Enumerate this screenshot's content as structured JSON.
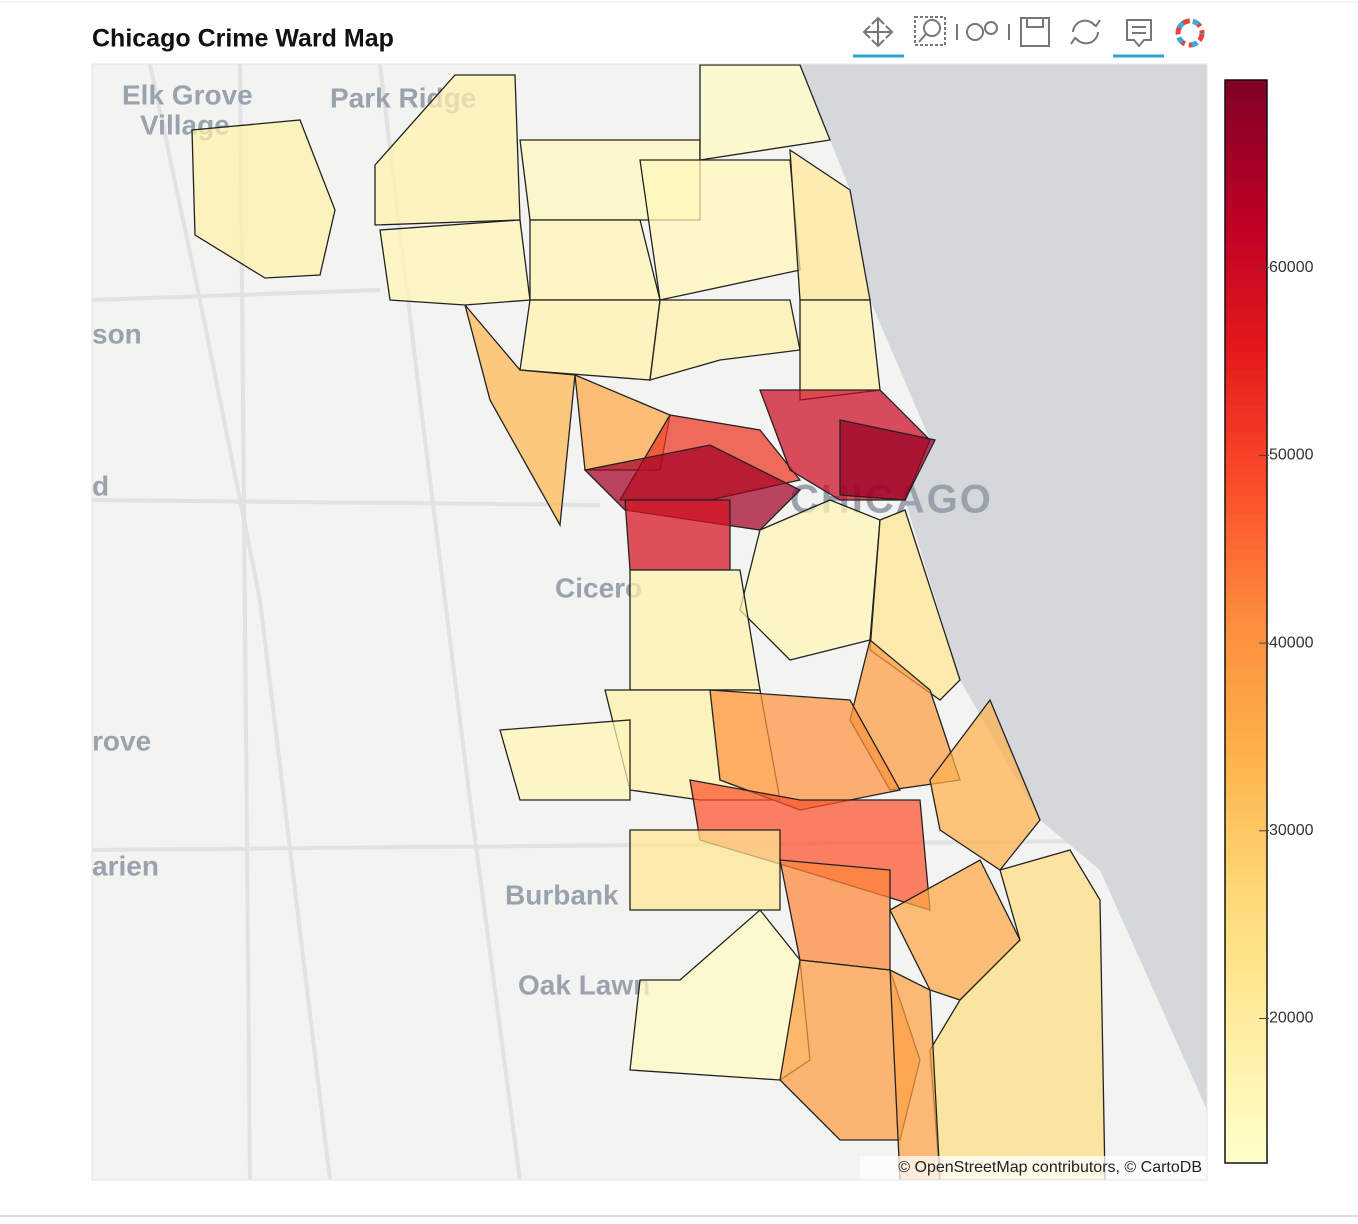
{
  "chart_data": {
    "type": "choropleth",
    "title": "Chicago Crime Ward Map",
    "values": [
      17000,
      16000,
      15000,
      14500,
      16500,
      15500,
      21000,
      17000,
      18000,
      17500,
      33000,
      36000,
      52000,
      66000,
      58000,
      60000,
      67000,
      16000,
      17000,
      22000,
      38000,
      18000,
      16000,
      40000,
      48000,
      22000,
      34000,
      42000,
      14000,
      36000,
      25000,
      38000,
      37000,
      18000
    ],
    "palette": [
      "#ffffcc",
      "#ffeda0",
      "#fed976",
      "#feb24c",
      "#fd8d3c",
      "#fc4e2a",
      "#e31a1c",
      "#bd0026",
      "#800026"
    ],
    "clim": [
      12300,
      70000
    ],
    "cticks": [
      20000,
      30000,
      40000,
      50000,
      60000
    ],
    "place_labels": [
      "Elk Grove",
      "Village",
      "Park Ridge",
      "son",
      "d",
      "Cicero",
      "rove",
      "arien",
      "Burbank",
      "Oak Lawn",
      "CHICAGO"
    ],
    "attribution": "© OpenStreetMap contributors, © CartoDB"
  }
}
